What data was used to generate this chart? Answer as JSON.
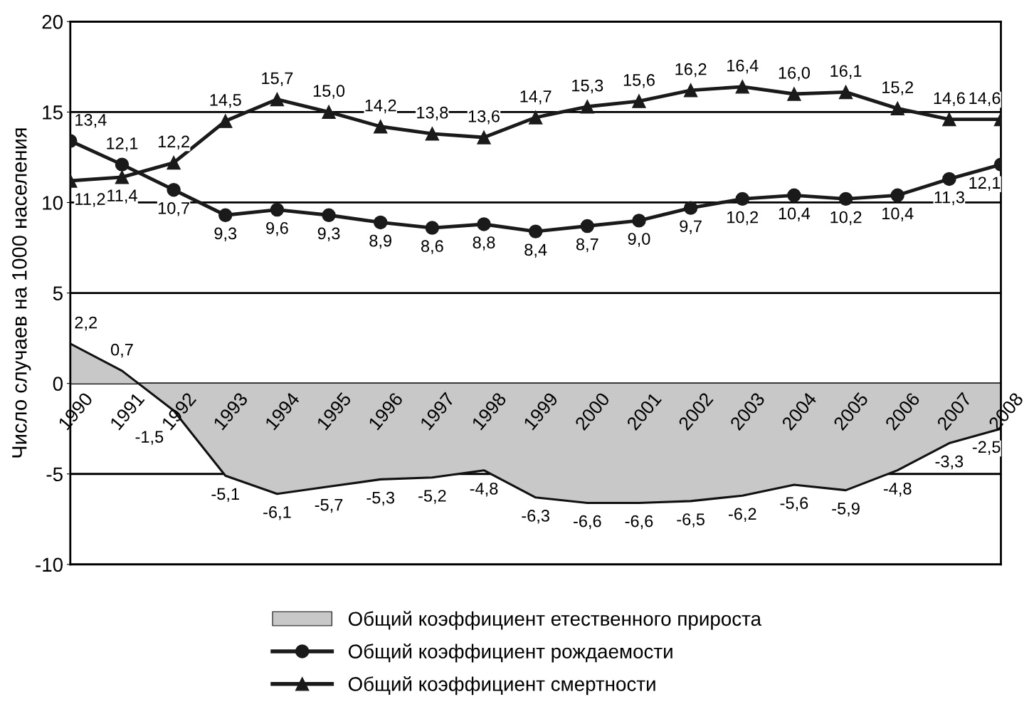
{
  "chart_data": {
    "type": "line",
    "ylabel": "Число случаев на 1000 населения",
    "categories": [
      "1990",
      "1991",
      "1992",
      "1993",
      "1994",
      "1995",
      "1996",
      "1997",
      "1998",
      "1999",
      "2000",
      "2001",
      "2002",
      "2003",
      "2004",
      "2005",
      "2006",
      "2007",
      "2008"
    ],
    "series": [
      {
        "name": "Общий коэффициент етественного прироста",
        "type": "area",
        "color": "#c8c8c8",
        "values": [
          2.2,
          0.7,
          -1.5,
          -5.1,
          -6.1,
          -5.7,
          -5.3,
          -5.2,
          -4.8,
          -6.3,
          -6.6,
          -6.6,
          -6.5,
          -6.2,
          -5.6,
          -5.9,
          -4.8,
          -3.3,
          -2.5
        ],
        "value_labels": [
          "2,2",
          "0,7",
          "-1,5",
          "-5,1",
          "-6,1",
          "-5,7",
          "-5,3",
          "-5,2",
          "-4,8",
          "-6,3",
          "-6,6",
          "-6,6",
          "-6,5",
          "-6,2",
          "-5,6",
          "-5,9",
          "-4,8",
          "-3,3",
          "-2,5"
        ]
      },
      {
        "name": "Общий коэффициент рождаемости",
        "marker": "circle",
        "color": "#1a1a1a",
        "values": [
          13.4,
          12.1,
          10.7,
          9.3,
          9.6,
          9.3,
          8.9,
          8.6,
          8.8,
          8.4,
          8.7,
          9.0,
          9.7,
          10.2,
          10.4,
          10.2,
          10.4,
          11.3,
          12.1
        ],
        "value_labels": [
          "13,4",
          "12,1",
          "10,7",
          "9,3",
          "9,6",
          "9,3",
          "8,9",
          "8,6",
          "8,8",
          "8,4",
          "8,7",
          "9,0",
          "9,7",
          "10,2",
          "10,4",
          "10,2",
          "10,4",
          "11,3",
          "12,1"
        ]
      },
      {
        "name": "Общий коэффициент смертности",
        "marker": "triangle",
        "color": "#1a1a1a",
        "values": [
          11.2,
          11.4,
          12.2,
          14.5,
          15.7,
          15.0,
          14.2,
          13.8,
          13.6,
          14.7,
          15.3,
          15.6,
          16.2,
          16.4,
          16.0,
          16.1,
          15.2,
          14.6,
          14.6
        ],
        "value_labels": [
          "11,2",
          "11,4",
          "12,2",
          "14,5",
          "15,7",
          "15,0",
          "14,2",
          "13,8",
          "13,6",
          "14,7",
          "15,3",
          "15,6",
          "16,2",
          "16,4",
          "16,0",
          "16,1",
          "15,2",
          "14,6",
          "14,6"
        ]
      }
    ],
    "ylim": [
      -10,
      20
    ],
    "yticks": [
      -10,
      -5,
      0,
      5,
      10,
      15,
      20
    ],
    "grid": "y",
    "legend": "bottom"
  }
}
